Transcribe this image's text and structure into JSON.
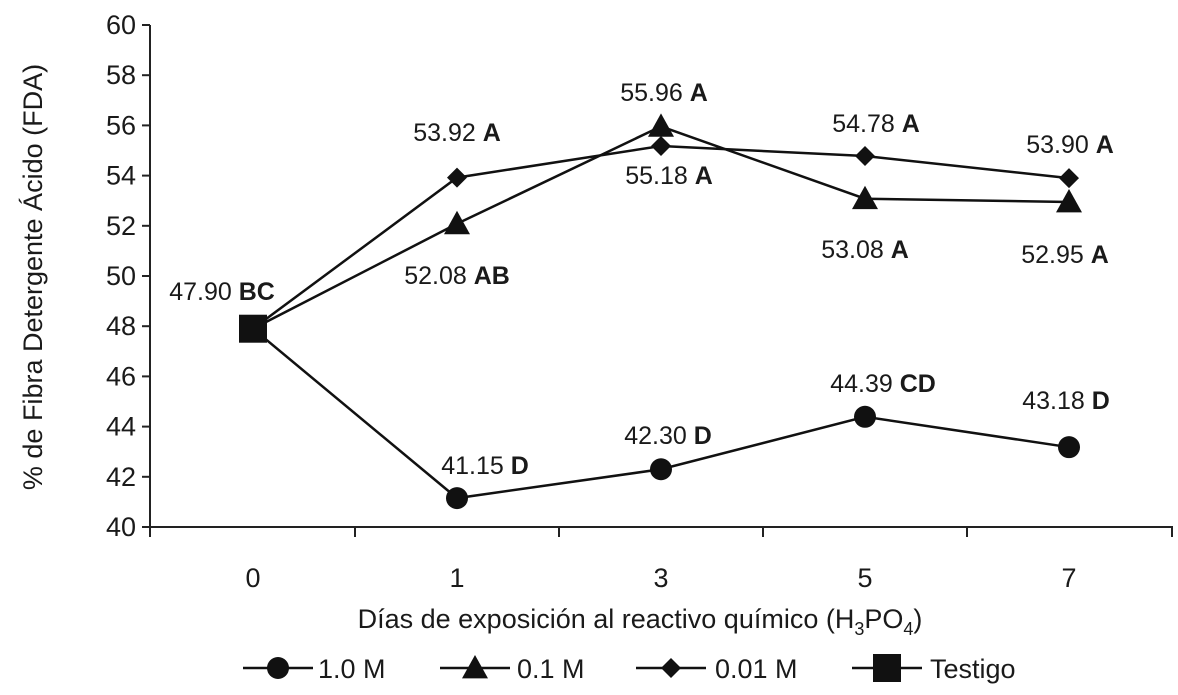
{
  "chart_data": {
    "type": "line",
    "xlabel": "Días de exposición al reactivo químico (H3PO4)",
    "xlabel_parts": {
      "pre": "Días de exposición al reactivo químico (H",
      "sub1": "3",
      "mid": "PO",
      "sub2": "4",
      "post": ")"
    },
    "ylabel": "% de  Fibra Detergente Ácido (FDA)",
    "categories": [
      "0",
      "1",
      "3",
      "5",
      "7"
    ],
    "ylim": [
      40,
      60
    ],
    "yticks": [
      "40",
      "42",
      "44",
      "46",
      "48",
      "50",
      "52",
      "54",
      "56",
      "58",
      "60"
    ],
    "grid": false,
    "legend_position": "bottom",
    "series": [
      {
        "name": "1.0 M",
        "marker": "circle",
        "values": [
          47.9,
          41.15,
          42.3,
          44.39,
          43.18
        ],
        "labels": [
          null,
          {
            "value": "41.15",
            "sig": "D"
          },
          {
            "value": "42.30",
            "sig": "D"
          },
          {
            "value": "44.39",
            "sig": "CD"
          },
          {
            "value": "43.18",
            "sig": "D"
          }
        ]
      },
      {
        "name": "0.1 M",
        "marker": "triangle",
        "values": [
          47.9,
          52.08,
          55.96,
          53.08,
          52.95
        ],
        "labels": [
          null,
          {
            "value": "52.08",
            "sig": "AB"
          },
          {
            "value": "55.96",
            "sig": "A"
          },
          {
            "value": "53.08",
            "sig": "A"
          },
          {
            "value": "52.95",
            "sig": "A"
          }
        ]
      },
      {
        "name": "0.01 M",
        "marker": "diamond",
        "values": [
          47.9,
          53.92,
          55.18,
          54.78,
          53.9
        ],
        "labels": [
          null,
          {
            "value": "53.92",
            "sig": "A"
          },
          {
            "value": "55.18",
            "sig": "A"
          },
          {
            "value": "54.78",
            "sig": "A"
          },
          {
            "value": "53.90",
            "sig": "A"
          }
        ]
      },
      {
        "name": "Testigo",
        "marker": "square",
        "values": [
          47.9,
          null,
          null,
          null,
          null
        ],
        "labels": [
          {
            "value": "47.90",
            "sig": "BC"
          },
          null,
          null,
          null,
          null
        ]
      }
    ],
    "colors": {
      "line": "#111111",
      "marker": "#111111",
      "text": "#1a1a1a"
    }
  }
}
